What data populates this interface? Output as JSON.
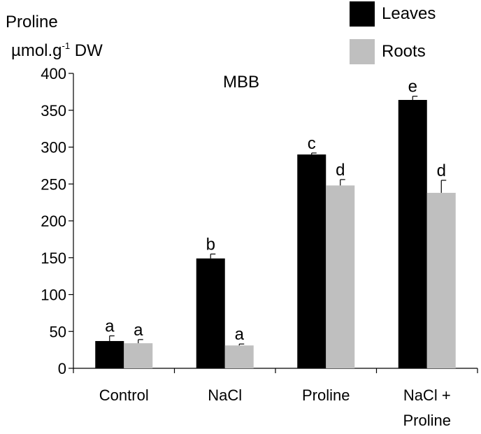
{
  "chart_data": {
    "type": "bar",
    "title": "MBB",
    "ylabel_line1": "Proline",
    "ylabel_line2_pre": "µmol.g",
    "ylabel_line2_sup": "-1",
    "ylabel_line2_post": " DW",
    "ylim": [
      0,
      400
    ],
    "yticks": [
      0,
      50,
      100,
      150,
      200,
      250,
      300,
      350,
      400
    ],
    "categories": [
      [
        "Control"
      ],
      [
        "NaCl"
      ],
      [
        "Proline"
      ],
      [
        "NaCl +",
        "Proline"
      ]
    ],
    "series": [
      {
        "name": "Leaves",
        "color": "#000000",
        "values": [
          37,
          149,
          290,
          364
        ],
        "errors": [
          7,
          6,
          2,
          5
        ],
        "letters": [
          "a",
          "b",
          "c",
          "e"
        ]
      },
      {
        "name": "Roots",
        "color": "#bfbfbf",
        "values": [
          34,
          31,
          248,
          238
        ],
        "errors": [
          5,
          2,
          8,
          17
        ],
        "letters": [
          "a",
          "a",
          "d",
          "d"
        ]
      }
    ],
    "legend_position": "top-right",
    "grid": false
  }
}
